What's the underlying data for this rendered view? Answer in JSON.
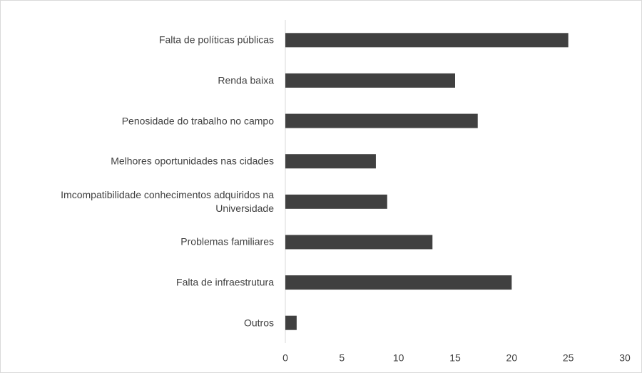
{
  "chart_data": {
    "type": "bar",
    "orientation": "horizontal",
    "categories": [
      "Falta de políticas públicas",
      "Renda baixa",
      "Penosidade do trabalho no campo",
      "Melhores oportunidades nas cidades",
      "Imcompatibilidade conhecimentos adquiridos na Universidade",
      "Problemas familiares",
      "Falta de infraestrutura",
      "Outros"
    ],
    "values": [
      25,
      15,
      17,
      8,
      9,
      13,
      20,
      1
    ],
    "color": "#404040",
    "xlim": [
      0,
      30
    ],
    "xticks": [
      0,
      5,
      10,
      15,
      20,
      25,
      30
    ],
    "grid": false
  }
}
